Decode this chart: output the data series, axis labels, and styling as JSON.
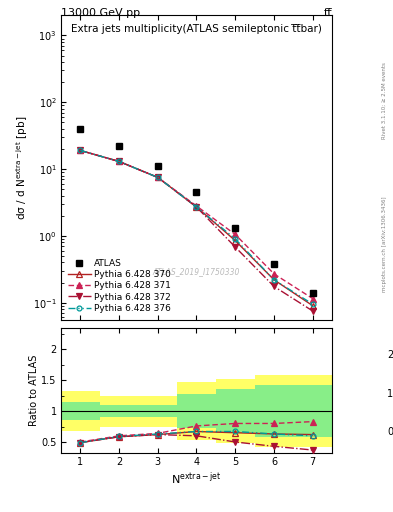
{
  "title": "Extra jets multiplicity",
  "title_sub": "(ATLAS semileptonic t̅t̅bar)",
  "header_left": "13000 GeV pp",
  "header_right": "tt̅",
  "ylabel_main": "dσ / d N$^{\\mathrm{extra-jet}}$ [pb]",
  "ylabel_ratio": "Ratio to ATLAS",
  "xlabel": "N$^{\\mathrm{extra-jet}}$",
  "watermark": "ATLAS_2019_I1750330",
  "right_label": "mcplots.cern.ch [arXiv:1306.3436]",
  "rivet_label": "Rivet 3.1.10; ≥ 2.5M events",
  "atlas_x": [
    1,
    2,
    3,
    4,
    5,
    6,
    7
  ],
  "atlas_y": [
    40,
    22,
    11,
    4.5,
    1.3,
    0.38,
    0.14
  ],
  "p370_x": [
    1,
    2,
    3,
    4,
    5,
    6,
    7
  ],
  "p370_y": [
    19,
    13,
    7.5,
    2.7,
    0.85,
    0.22,
    0.09
  ],
  "p371_x": [
    1,
    2,
    3,
    4,
    5,
    6,
    7
  ],
  "p371_y": [
    19,
    13,
    7.5,
    2.8,
    1.05,
    0.27,
    0.115
  ],
  "p372_x": [
    1,
    2,
    3,
    4,
    5,
    6,
    7
  ],
  "p372_y": [
    19,
    13,
    7.5,
    2.7,
    0.68,
    0.175,
    0.075
  ],
  "p376_x": [
    1,
    2,
    3,
    4,
    5,
    6,
    7
  ],
  "p376_y": [
    19,
    13,
    7.5,
    2.7,
    0.9,
    0.22,
    0.095
  ],
  "ratio_p370": [
    0.49,
    0.585,
    0.62,
    0.67,
    0.65,
    0.63,
    0.62
  ],
  "ratio_p371": [
    0.5,
    0.6,
    0.64,
    0.76,
    0.8,
    0.8,
    0.83
  ],
  "ratio_p372": [
    0.49,
    0.585,
    0.62,
    0.6,
    0.5,
    0.43,
    0.37
  ],
  "ratio_p376": [
    0.49,
    0.59,
    0.63,
    0.67,
    0.67,
    0.63,
    0.6
  ],
  "band_x": [
    0.5,
    1.5,
    2.5,
    3.5,
    4.5,
    5.5,
    6.5,
    7.5
  ],
  "band_green_lo": [
    0.85,
    0.9,
    0.9,
    0.72,
    0.65,
    0.58,
    0.58,
    0.58
  ],
  "band_green_hi": [
    1.15,
    1.1,
    1.1,
    1.28,
    1.35,
    1.42,
    1.42,
    1.42
  ],
  "band_yellow_lo": [
    0.68,
    0.75,
    0.75,
    0.53,
    0.48,
    0.42,
    0.42,
    0.42
  ],
  "band_yellow_hi": [
    1.32,
    1.25,
    1.25,
    1.47,
    1.52,
    1.58,
    1.58,
    2.2
  ],
  "color_370": "#b22222",
  "color_371": "#cc2255",
  "color_372": "#aa1133",
  "color_376": "#009999",
  "xlim": [
    0.5,
    7.5
  ],
  "ylim_main": [
    0.055,
    2000
  ],
  "ylim_ratio": [
    0.32,
    2.35
  ]
}
